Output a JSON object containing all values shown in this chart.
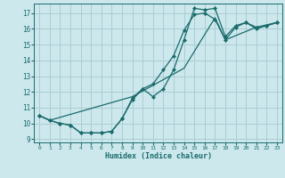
{
  "xlabel": "Humidex (Indice chaleur)",
  "bg_color": "#cce8ed",
  "grid_color": "#aacdd4",
  "line_color": "#1a6b6b",
  "xlim": [
    -0.5,
    23.5
  ],
  "ylim": [
    8.8,
    17.6
  ],
  "yticks": [
    9,
    10,
    11,
    12,
    13,
    14,
    15,
    16,
    17
  ],
  "xticks": [
    0,
    1,
    2,
    3,
    4,
    5,
    6,
    7,
    8,
    9,
    10,
    11,
    12,
    13,
    14,
    15,
    16,
    17,
    18,
    19,
    20,
    21,
    22,
    23
  ],
  "line1_x": [
    0,
    1,
    2,
    3,
    4,
    5,
    6,
    7,
    8,
    9,
    10,
    11,
    12,
    13,
    14,
    15,
    16,
    17,
    18,
    19,
    20,
    21,
    22,
    23
  ],
  "line1_y": [
    10.5,
    10.2,
    10.0,
    9.9,
    9.4,
    9.4,
    9.4,
    9.5,
    10.3,
    11.6,
    12.2,
    12.5,
    13.4,
    14.3,
    15.9,
    16.9,
    17.0,
    16.6,
    15.3,
    16.1,
    16.4,
    16.0,
    16.2,
    16.4
  ],
  "line2_x": [
    0,
    1,
    2,
    3,
    4,
    5,
    6,
    7,
    8,
    9,
    10,
    11,
    12,
    13,
    14,
    15,
    16,
    17,
    18,
    19,
    20,
    21,
    22,
    23
  ],
  "line2_y": [
    10.5,
    10.2,
    10.0,
    9.9,
    9.4,
    9.4,
    9.4,
    9.5,
    10.3,
    11.5,
    12.2,
    11.7,
    12.2,
    13.4,
    15.3,
    17.3,
    17.2,
    17.3,
    15.5,
    16.2,
    16.4,
    16.1,
    16.2,
    16.4
  ],
  "line3_x": [
    0,
    1,
    9,
    14,
    17,
    18,
    21,
    23
  ],
  "line3_y": [
    10.5,
    10.2,
    11.7,
    13.5,
    16.7,
    15.3,
    16.1,
    16.4
  ]
}
